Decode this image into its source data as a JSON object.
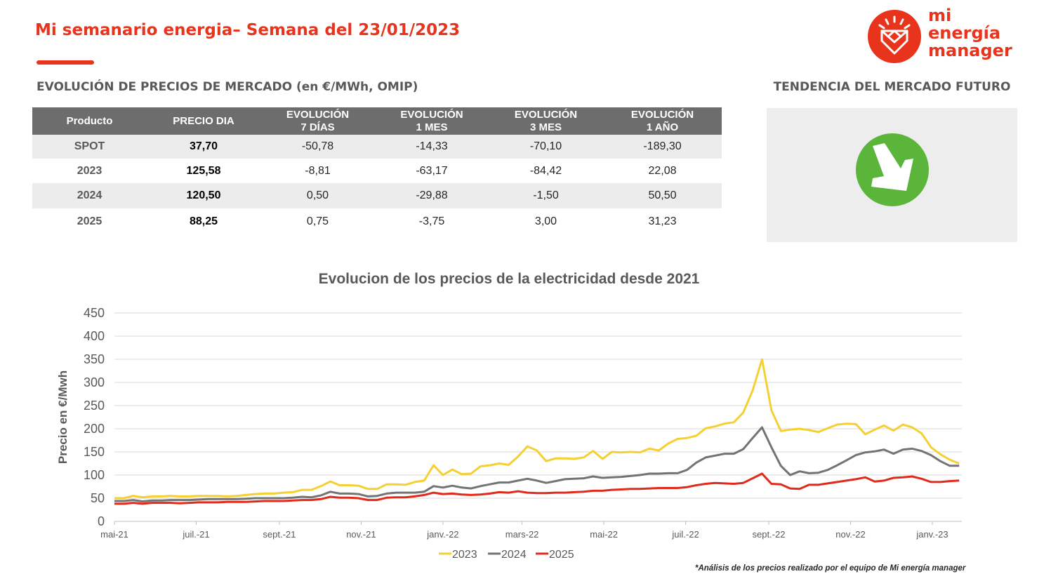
{
  "header": {
    "title": "Mi semanario energia– Semana del 23/01/2023"
  },
  "brand": {
    "line1": "mi",
    "line2": "energía",
    "line3": "manager"
  },
  "table": {
    "title": "EVOLUCIÓN DE PRECIOS DE MERCADO (en €/MWh, OMIP)",
    "headers": [
      [
        "Producto"
      ],
      [
        "PRECIO DIA"
      ],
      [
        "EVOLUCIÓN",
        "7 DÍAS"
      ],
      [
        "EVOLUCIÓN",
        "1 MES"
      ],
      [
        "EVOLUCIÓN",
        "3 MES"
      ],
      [
        "EVOLUCIÓN",
        "1 AÑO"
      ]
    ],
    "rows": [
      [
        "SPOT",
        "37,70",
        "-50,78",
        "-14,33",
        "-70,10",
        "-189,30"
      ],
      [
        "2023",
        "125,58",
        "-8,81",
        "-63,17",
        "-84,42",
        "22,08"
      ],
      [
        "2024",
        "120,50",
        "0,50",
        "-29,88",
        "-1,50",
        "50,50"
      ],
      [
        "2025",
        "88,25",
        "0,75",
        "-3,75",
        "3,00",
        "31,23"
      ]
    ]
  },
  "trend": {
    "title": "TENDENCIA DEL MERCADO FUTURO",
    "icon": "arrow-down-right-icon",
    "color": "#5bb53b"
  },
  "footnote": "*Análisis de los precios realizado por el equipo de Mi energía manager",
  "chart_data": {
    "type": "line",
    "title": "Evolucion de los precios de la electricidad desde 2021",
    "ylabel": "Precio en €/Mwh",
    "ylim": [
      0,
      450
    ],
    "yticks": [
      0,
      50,
      100,
      150,
      200,
      250,
      300,
      350,
      400,
      450
    ],
    "x_tick_labels": [
      "mai-21",
      "juil.-21",
      "sept.-21",
      "nov.-21",
      "janv.-22",
      "mars-22",
      "mai-22",
      "juil.-22",
      "sept.-22",
      "nov.-22",
      "janv.-23"
    ],
    "x_tick_dates": [
      "2021-05-01",
      "2021-07-01",
      "2021-09-01",
      "2021-11-01",
      "2022-01-01",
      "2022-03-01",
      "2022-05-01",
      "2022-07-01",
      "2022-09-01",
      "2022-11-01",
      "2023-01-01"
    ],
    "x_range": [
      "2021-05-01",
      "2023-01-23"
    ],
    "x": [
      "2021-05-01",
      "2021-05-08",
      "2021-05-15",
      "2021-05-22",
      "2021-05-29",
      "2021-06-05",
      "2021-06-12",
      "2021-06-19",
      "2021-06-26",
      "2021-07-03",
      "2021-07-10",
      "2021-07-17",
      "2021-07-24",
      "2021-07-31",
      "2021-08-07",
      "2021-08-14",
      "2021-08-21",
      "2021-08-28",
      "2021-09-04",
      "2021-09-11",
      "2021-09-18",
      "2021-09-25",
      "2021-10-02",
      "2021-10-09",
      "2021-10-16",
      "2021-10-23",
      "2021-10-30",
      "2021-11-06",
      "2021-11-13",
      "2021-11-20",
      "2021-11-27",
      "2021-12-04",
      "2021-12-11",
      "2021-12-18",
      "2021-12-25",
      "2022-01-01",
      "2022-01-08",
      "2022-01-15",
      "2022-01-22",
      "2022-01-29",
      "2022-02-05",
      "2022-02-12",
      "2022-02-19",
      "2022-02-26",
      "2022-03-05",
      "2022-03-12",
      "2022-03-19",
      "2022-03-26",
      "2022-04-02",
      "2022-04-09",
      "2022-04-16",
      "2022-04-23",
      "2022-04-30",
      "2022-05-07",
      "2022-05-14",
      "2022-05-21",
      "2022-05-28",
      "2022-06-04",
      "2022-06-11",
      "2022-06-18",
      "2022-06-25",
      "2022-07-02",
      "2022-07-09",
      "2022-07-16",
      "2022-07-23",
      "2022-07-30",
      "2022-08-06",
      "2022-08-13",
      "2022-08-20",
      "2022-08-27",
      "2022-09-03",
      "2022-09-10",
      "2022-09-17",
      "2022-09-24",
      "2022-10-01",
      "2022-10-08",
      "2022-10-15",
      "2022-10-22",
      "2022-10-29",
      "2022-11-05",
      "2022-11-12",
      "2022-11-19",
      "2022-11-26",
      "2022-12-03",
      "2022-12-10",
      "2022-12-17",
      "2022-12-24",
      "2022-12-31",
      "2023-01-07",
      "2023-01-14",
      "2023-01-21"
    ],
    "series": [
      {
        "name": "2023",
        "color": "#f5d033",
        "values": [
          50,
          50,
          55,
          52,
          54,
          54,
          55,
          54,
          54,
          55,
          55,
          55,
          54,
          55,
          57,
          59,
          60,
          60,
          62,
          63,
          68,
          68,
          76,
          86,
          78,
          78,
          77,
          70,
          70,
          80,
          80,
          79,
          85,
          88,
          121,
          100,
          112,
          102,
          103,
          119,
          121,
          125,
          122,
          140,
          162,
          153,
          130,
          136,
          136,
          135,
          138,
          152,
          135,
          150,
          149,
          150,
          149,
          157,
          153,
          168,
          178,
          180,
          185,
          201,
          205,
          211,
          214,
          235,
          283,
          350,
          240,
          195,
          198,
          200,
          197,
          193,
          201,
          209,
          211,
          210,
          188,
          198,
          207,
          196,
          209,
          203,
          190,
          160,
          145,
          133,
          125
        ]
      },
      {
        "name": "2024",
        "color": "#737373",
        "values": [
          44,
          44,
          46,
          43,
          45,
          45,
          46,
          46,
          46,
          47,
          48,
          48,
          48,
          48,
          49,
          50,
          50,
          50,
          50,
          51,
          53,
          52,
          56,
          64,
          60,
          60,
          59,
          54,
          55,
          60,
          62,
          62,
          62,
          64,
          76,
          73,
          77,
          73,
          71,
          76,
          80,
          84,
          84,
          88,
          92,
          88,
          83,
          87,
          91,
          92,
          93,
          97,
          94,
          95,
          96,
          98,
          100,
          103,
          103,
          104,
          104,
          111,
          127,
          138,
          142,
          146,
          146,
          156,
          180,
          203,
          160,
          120,
          100,
          108,
          104,
          105,
          111,
          121,
          132,
          143,
          149,
          151,
          155,
          146,
          155,
          157,
          152,
          143,
          130,
          120,
          120
        ]
      },
      {
        "name": "2025",
        "color": "#e12a1b",
        "values": [
          38,
          38,
          40,
          38,
          40,
          40,
          40,
          39,
          40,
          41,
          41,
          41,
          42,
          42,
          42,
          43,
          44,
          44,
          44,
          45,
          46,
          46,
          48,
          53,
          51,
          51,
          50,
          46,
          46,
          51,
          52,
          52,
          54,
          57,
          62,
          59,
          60,
          58,
          57,
          58,
          60,
          63,
          62,
          65,
          62,
          61,
          61,
          62,
          62,
          63,
          64,
          66,
          66,
          68,
          69,
          70,
          70,
          71,
          72,
          72,
          72,
          74,
          78,
          81,
          83,
          82,
          81,
          83,
          93,
          103,
          81,
          80,
          71,
          70,
          79,
          79,
          82,
          85,
          88,
          91,
          95,
          86,
          88,
          94,
          95,
          97,
          92,
          85,
          85,
          87,
          88
        ]
      }
    ],
    "legend_position": "bottom",
    "grid": true
  }
}
